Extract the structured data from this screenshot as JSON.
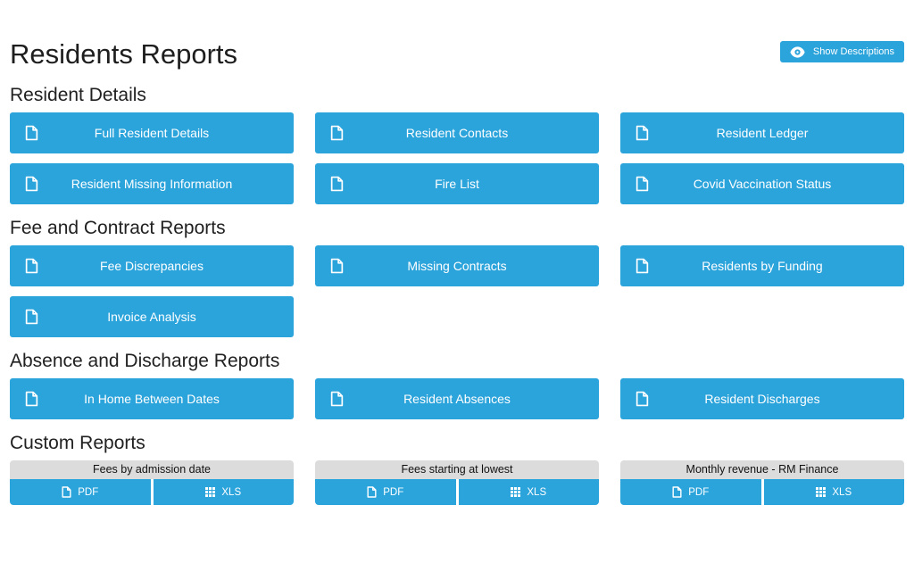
{
  "page": {
    "title": "Residents Reports",
    "show_descriptions_label": "Show Descriptions"
  },
  "colors": {
    "accent_blue": "#2BA3DB",
    "card_header_gray": "#DCDCDC",
    "heading_text": "#212121",
    "button_text": "#FFFFFF"
  },
  "sections": [
    {
      "heading": "Resident Details",
      "buttons": [
        "Full Resident Details",
        "Resident Contacts",
        "Resident Ledger",
        "Resident Missing Information",
        "Fire List",
        "Covid Vaccination Status"
      ]
    },
    {
      "heading": "Fee and Contract Reports",
      "buttons": [
        "Fee Discrepancies",
        "Missing Contracts",
        "Residents by Funding",
        "Invoice Analysis"
      ]
    },
    {
      "heading": "Absence and Discharge Reports",
      "buttons": [
        "In Home Between Dates",
        "Resident Absences",
        "Resident Discharges"
      ]
    }
  ],
  "custom_reports": {
    "heading": "Custom Reports",
    "pdf_label": "PDF",
    "xls_label": "XLS",
    "cards": [
      {
        "title": "Fees by admission date"
      },
      {
        "title": "Fees starting at lowest"
      },
      {
        "title": "Monthly revenue - RM Finance"
      }
    ]
  }
}
